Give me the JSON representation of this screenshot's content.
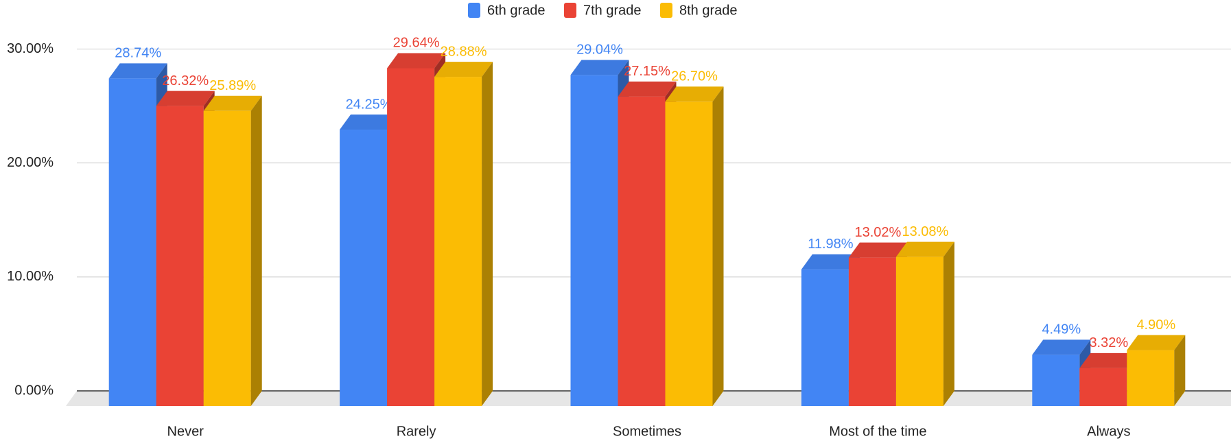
{
  "chart_data": {
    "type": "bar3d",
    "categories": [
      "Never",
      "Rarely",
      "Sometimes",
      "Most of the time",
      "Always"
    ],
    "series": [
      {
        "name": "6th grade",
        "color": "#4285f4",
        "values": [
          28.74,
          24.25,
          29.04,
          11.98,
          4.49
        ],
        "value_labels": [
          "28.74%",
          "24.25%",
          "29.04%",
          "11.98%",
          "4.49%"
        ]
      },
      {
        "name": "7th grade",
        "color": "#ea4335",
        "values": [
          26.32,
          29.64,
          27.15,
          13.02,
          3.32
        ],
        "value_labels": [
          "26.32%",
          "29.64%",
          "27.15%",
          "13.02%",
          "3.32%"
        ]
      },
      {
        "name": "8th grade",
        "color": "#fbbc04",
        "values": [
          25.89,
          28.88,
          26.7,
          13.08,
          4.9
        ],
        "value_labels": [
          "25.89%",
          "28.88%",
          "26.70%",
          "13.08%",
          "4.90%"
        ]
      }
    ],
    "ylim": [
      0,
      34
    ],
    "yticks": [
      {
        "value": 0,
        "label": "0.00%"
      },
      {
        "value": 10,
        "label": "10.00%"
      },
      {
        "value": 20,
        "label": "20.00%"
      },
      {
        "value": 30,
        "label": "30.00%"
      }
    ],
    "grid": true,
    "legend": "top"
  }
}
